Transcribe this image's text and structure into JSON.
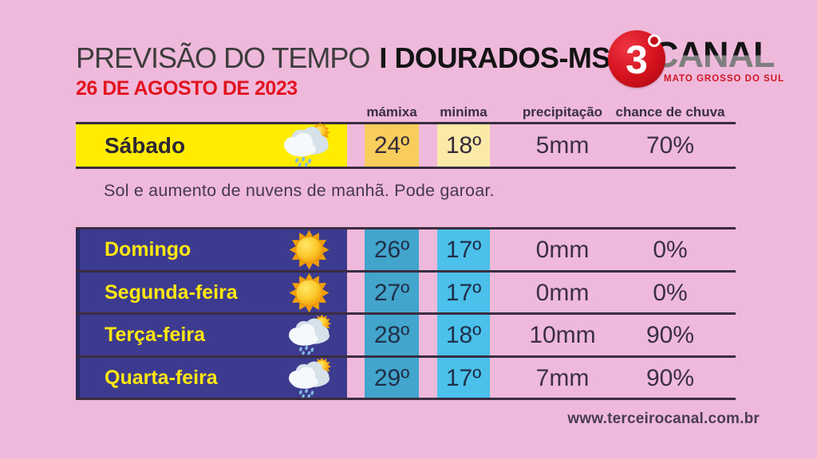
{
  "header": {
    "title_left": "PREVISÃO DO TEMPO",
    "title_separator": "I",
    "title_location": "DOURADOS-MS",
    "date": "26 DE AGOSTO DE 2023",
    "logo": {
      "number": "3",
      "degree_mark": "º",
      "name": "CANAL",
      "region": "MATO GROSSO DO SUL"
    }
  },
  "table": {
    "columns": {
      "max": "mámixa",
      "min": "minima",
      "precip": "precipitação",
      "chance": "chance de chuva"
    }
  },
  "today": {
    "day": "Sábado",
    "icon": "sun-behind-rain-cloud",
    "max": "24º",
    "min": "18º",
    "precip": "5mm",
    "chance": "70%",
    "summary": "Sol e aumento de nuvens de manhã. Pode garoar."
  },
  "forecast": [
    {
      "day": "Domingo",
      "icon": "sun",
      "max": "26º",
      "min": "17º",
      "precip": "0mm",
      "chance": "0%"
    },
    {
      "day": "Segunda-feira",
      "icon": "sun",
      "max": "27º",
      "min": "17º",
      "precip": "0mm",
      "chance": "0%"
    },
    {
      "day": "Terça-feira",
      "icon": "sun-behind-rain-cloud",
      "max": "28º",
      "min": "18º",
      "precip": "10mm",
      "chance": "90%"
    },
    {
      "day": "Quarta-feira",
      "icon": "sun-behind-rain-cloud",
      "max": "29º",
      "min": "17º",
      "precip": "7mm",
      "chance": "90%"
    }
  ],
  "footer": {
    "website": "www.terceirocanal.com.br"
  },
  "colors": {
    "background": "#efb9dc",
    "today_row": "#ffec00",
    "today_max_cell": "#f8cd5b",
    "today_min_cell": "#fae9a7",
    "week_band": "#3c3b90",
    "max_column": "#42a5cb",
    "min_column": "#4bc0ea",
    "accent_red": "#e2141e",
    "day_text": "#ffe70f",
    "rule": "#3a2d3f"
  }
}
